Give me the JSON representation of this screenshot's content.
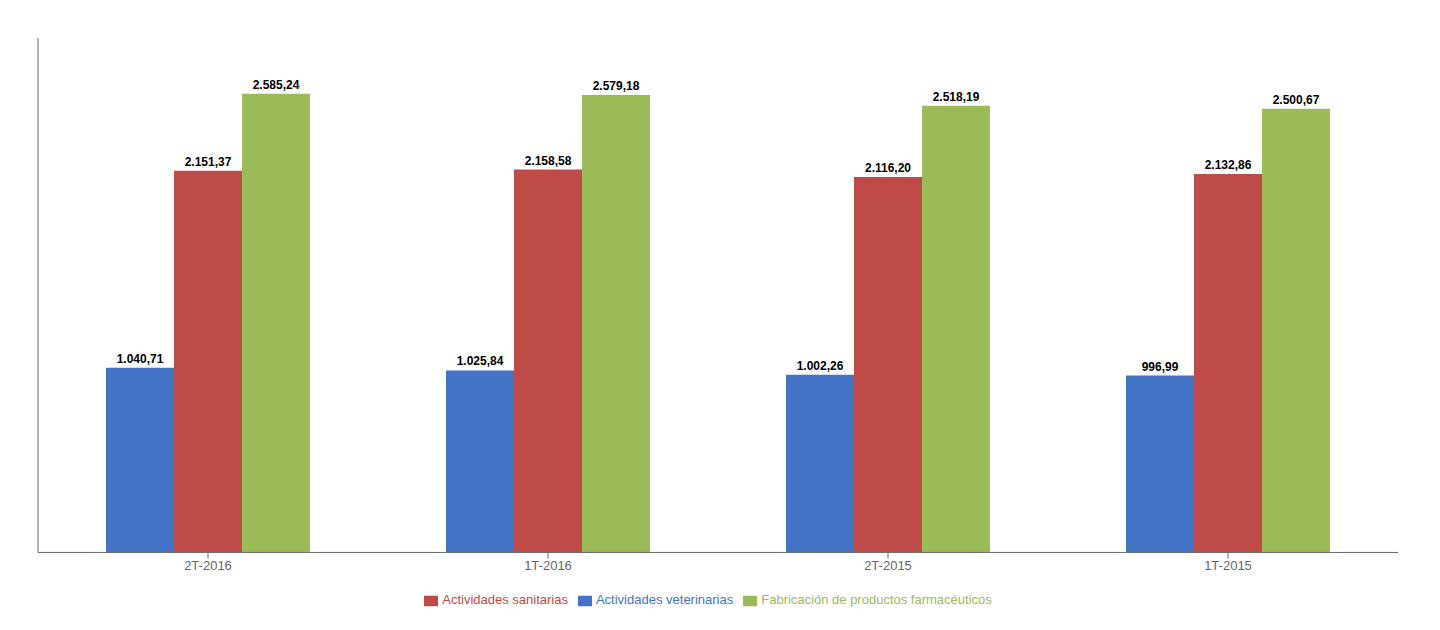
{
  "chart_data": {
    "type": "bar",
    "categories": [
      "2T-2016",
      "1T-2016",
      "2T-2015",
      "1T-2015"
    ],
    "series": [
      {
        "name": "Actividades veterinarias",
        "color": "#4472C4",
        "values": [
          1040.71,
          1025.84,
          1002.26,
          996.99
        ],
        "value_labels": [
          "1.040,71",
          "1.025,84",
          "1.002,26",
          "996,99"
        ]
      },
      {
        "name": "Actividades sanitarias",
        "color": "#BE4B48",
        "values": [
          2151.37,
          2158.58,
          2116.2,
          2132.86
        ],
        "value_labels": [
          "2.151,37",
          "2.158,58",
          "2.116,20",
          "2.132,86"
        ]
      },
      {
        "name": "Fabricación de productos farmacéuticos",
        "color": "#9BBB59",
        "values": [
          2585.24,
          2579.18,
          2518.19,
          2500.67
        ],
        "value_labels": [
          "2.585,24",
          "2.579,18",
          "2.518,19",
          "2.500,67"
        ]
      }
    ],
    "ylim": [
      0,
      2900
    ],
    "grid": false,
    "legend": "bottom",
    "data_labels": true,
    "tick_labels": "x"
  }
}
